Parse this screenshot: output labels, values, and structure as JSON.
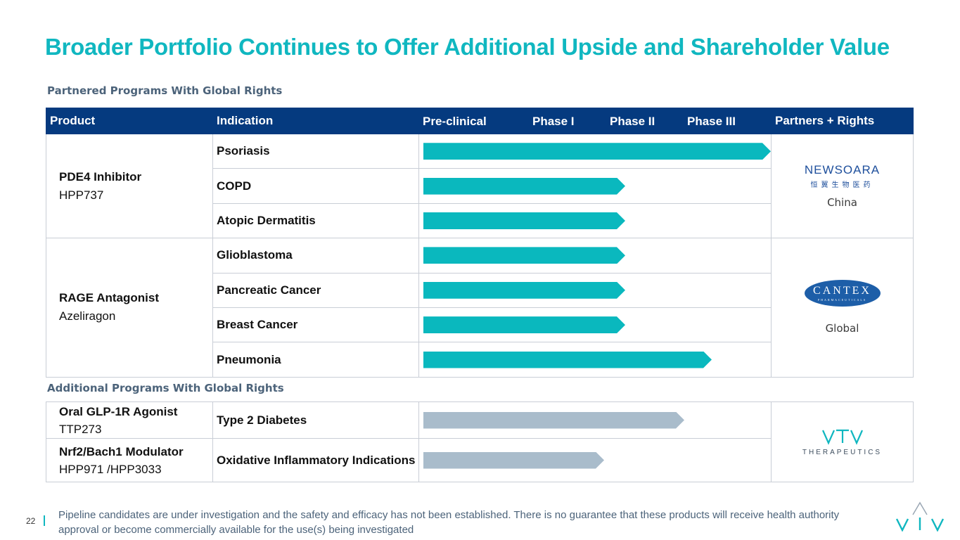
{
  "title": "Broader Portfolio Continues to Offer Additional Upside and Shareholder Value",
  "partnered_label": "Partnered Programs With Global Rights",
  "additional_label": "Additional Programs With Global Rights",
  "header": {
    "product": "Product",
    "indication": "Indication",
    "preclinical": "Pre-clinical",
    "phase1": "Phase I",
    "phase2": "Phase II",
    "phase3": "Phase III",
    "partners": "Partners + Rights"
  },
  "partnered_programs": [
    {
      "name": "PDE4 Inhibitor",
      "code": "HPP737",
      "partner_logo": "NEWSOARA",
      "partner_logo_sub": "恒翼生物医药",
      "partner_region": "China",
      "indications": [
        {
          "name": "Psoriasis",
          "progress": 1.0
        },
        {
          "name": "COPD",
          "progress": 0.58
        },
        {
          "name": "Atopic Dermatitis",
          "progress": 0.58
        }
      ]
    },
    {
      "name": "RAGE Antagonist",
      "code": "Azeliragon",
      "partner_logo": "CANTEX",
      "partner_logo_sub": "PHARMACEUTICALS",
      "partner_region": "Global",
      "indications": [
        {
          "name": "Glioblastoma",
          "progress": 0.58
        },
        {
          "name": "Pancreatic Cancer",
          "progress": 0.58
        },
        {
          "name": "Breast Cancer",
          "progress": 0.58
        },
        {
          "name": "Pneumonia",
          "progress": 0.83
        }
      ]
    }
  ],
  "additional_programs": [
    {
      "name": "Oral GLP-1R Agonist",
      "code": "TTP273",
      "indication": "Type 2 Diabetes",
      "progress": 0.75
    },
    {
      "name": "Nrf2/Bach1 Modulator",
      "code": "HPP971 /HPP3033",
      "indication": "Oxidative Inflammatory Indications",
      "progress": 0.52
    }
  ],
  "vtv_logo_sub": "THERAPEUTICS",
  "colors": {
    "title": "#10b7c0",
    "header_bg": "#053a7f",
    "bar_partnered": "#0ab8be",
    "bar_additional": "#a9bccb",
    "section_label": "#4c637a"
  },
  "footer": {
    "page_number": "22",
    "disclaimer": "Pipeline candidates are under investigation and the safety and efficacy has not been established. There is no guarantee that these products will receive health authority approval or become commercially available for the use(s) being investigated"
  }
}
